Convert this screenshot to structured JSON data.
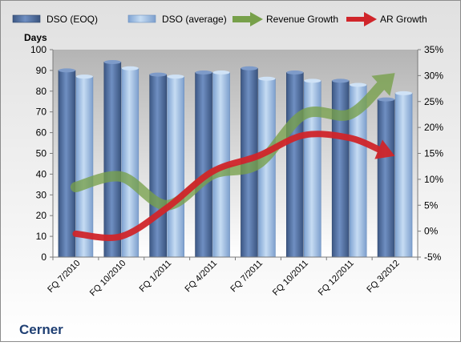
{
  "chart_data": {
    "type": "bar",
    "company": "Cerner",
    "ylabel_left": "Days",
    "categories": [
      "FQ 7/2010",
      "FQ 10/2010",
      "FQ 1/2011",
      "FQ 4/2011",
      "FQ 7/2011",
      "FQ 10/2011",
      "FQ 12/2011",
      "FQ 3/2012"
    ],
    "left_axis": {
      "min": 0,
      "max": 100,
      "ticks": [
        0,
        10,
        20,
        30,
        40,
        50,
        60,
        70,
        80,
        90,
        100
      ]
    },
    "right_axis": {
      "min": -5,
      "max": 35,
      "ticks": [
        -5,
        0,
        5,
        10,
        15,
        20,
        25,
        30,
        35
      ],
      "format": "percent"
    },
    "series": [
      {
        "name": "DSO (EOQ)",
        "kind": "bar",
        "axis": "left",
        "color": "#4f6d9e",
        "values": [
          90,
          94,
          88,
          89,
          91,
          89,
          85,
          76
        ]
      },
      {
        "name": "DSO (average)",
        "kind": "bar",
        "axis": "left",
        "color": "#9cbde3",
        "values": [
          87,
          91,
          87,
          89,
          86,
          85,
          83,
          79
        ]
      },
      {
        "name": "Revenue Growth",
        "kind": "arrow-line",
        "axis": "right",
        "color": "#77a04a",
        "values": [
          8.5,
          10.5,
          5,
          11,
          13,
          22.5,
          22.5,
          30.5
        ]
      },
      {
        "name": "AR Growth",
        "kind": "arrow-line",
        "axis": "right",
        "color": "#d0252a",
        "values": [
          -0.5,
          -1,
          4.5,
          11.5,
          14.5,
          18.5,
          18,
          14.5
        ]
      }
    ],
    "grid": false,
    "legend_position": "top"
  }
}
